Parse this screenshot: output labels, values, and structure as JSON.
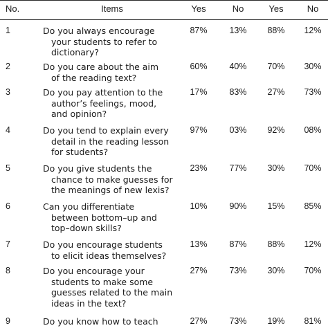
{
  "header": {
    "no": "No.",
    "items": "Items",
    "c1": "Yes",
    "c2": "No",
    "c3": "Yes",
    "c4": "No"
  },
  "rows": [
    {
      "no": "1",
      "lines": [
        "Do you always encourage",
        "your students to refer to",
        "dictionary?"
      ],
      "v": [
        "87%",
        "13%",
        "88%",
        "12%"
      ]
    },
    {
      "no": "2",
      "lines": [
        "Do you care about the aim",
        "of the reading text?"
      ],
      "v": [
        "60%",
        "40%",
        "70%",
        "30%"
      ]
    },
    {
      "no": "3",
      "lines": [
        "Do you pay attention to the",
        "author’s feelings, mood,",
        "and opinion?"
      ],
      "v": [
        "17%",
        "83%",
        "27%",
        "73%"
      ]
    },
    {
      "no": "4",
      "lines": [
        "Do you tend to explain every",
        "detail in the reading lesson",
        "for students?"
      ],
      "v": [
        "97%",
        "03%",
        "92%",
        "08%"
      ]
    },
    {
      "no": "5",
      "lines": [
        "Do you give students the",
        "chance to make guesses for",
        "the meanings of new lexis?"
      ],
      "v": [
        "23%",
        "77%",
        "30%",
        "70%"
      ]
    },
    {
      "no": "6",
      "lines": [
        "Can you differentiate",
        "between bottom–up and",
        "top–down skills?"
      ],
      "v": [
        "10%",
        "90%",
        "15%",
        "85%"
      ]
    },
    {
      "no": "7",
      "lines": [
        "Do you encourage students",
        "to elicit ideas themselves?"
      ],
      "v": [
        "13%",
        "87%",
        "88%",
        "12%"
      ]
    },
    {
      "no": "8",
      "lines": [
        "Do you encourage your",
        "students to make some",
        "guesses related to the main",
        "ideas in the text?"
      ],
      "v": [
        "27%",
        "73%",
        "30%",
        "70%"
      ]
    },
    {
      "no": "9",
      "lines": [
        "Do you know how to teach"
      ],
      "v": [
        "27%",
        "73%",
        "19%",
        "81%"
      ]
    }
  ]
}
